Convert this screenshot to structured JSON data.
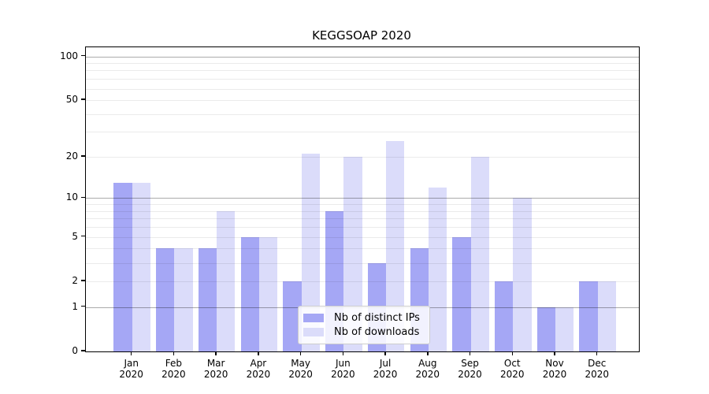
{
  "title": "KEGGSOAP 2020",
  "chart_data": {
    "type": "bar",
    "title": "KEGGSOAP 2020",
    "categories": [
      "Jan",
      "Feb",
      "Mar",
      "Apr",
      "May",
      "Jun",
      "Jul",
      "Aug",
      "Sep",
      "Oct",
      "Nov",
      "Dec"
    ],
    "category_year": "2020",
    "series": [
      {
        "name": "Nb of distinct IPs",
        "color": "#a5a7f5",
        "values": [
          13,
          4,
          4,
          5,
          2,
          8,
          3,
          4,
          5,
          2,
          1,
          2
        ]
      },
      {
        "name": "Nb of downloads",
        "color": "#dbdcfa",
        "values": [
          13,
          4,
          8,
          5,
          21,
          20,
          26,
          12,
          20,
          10,
          1,
          2
        ]
      }
    ],
    "y_scale": "log10(1+x)",
    "y_ticks": [
      0,
      1,
      2,
      5,
      10,
      20,
      50,
      100
    ],
    "y_major_gridlines": [
      1,
      10,
      100
    ],
    "y_minor_gridlines": [
      2,
      3,
      4,
      5,
      6,
      7,
      8,
      9,
      20,
      30,
      40,
      50,
      60,
      70,
      80,
      90
    ],
    "ylim": [
      0,
      116
    ],
    "grid": "horizontal",
    "legend_position": "lower center"
  },
  "colors": {
    "background": "#ffffff",
    "spine": "#000000",
    "major_grid": "rgba(0,0,0,0.33)",
    "minor_grid": "rgba(0,0,0,0.08)",
    "bar_ips": "#a5a7f5",
    "bar_downloads": "#dbdcfa"
  }
}
